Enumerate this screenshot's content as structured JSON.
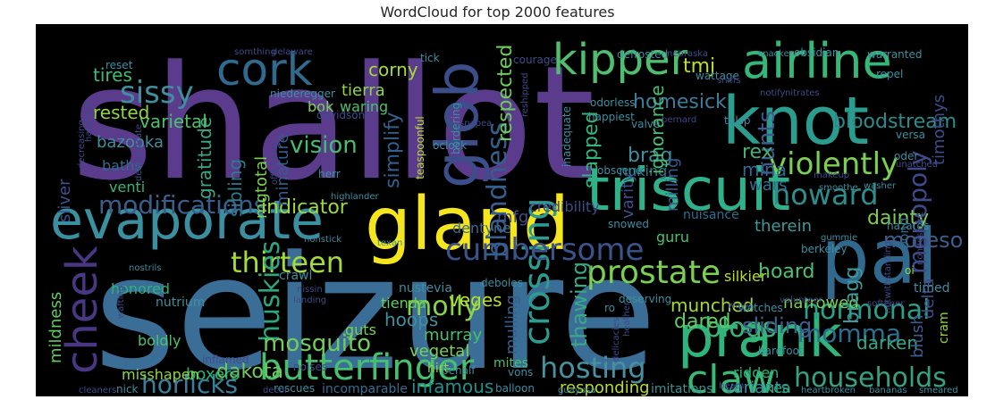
{
  "chart_data": {
    "type": "wordcloud",
    "title": "WordCloud for top 2000 features",
    "background": "#000000",
    "colormap": "viridis",
    "words": [
      {
        "text": "shallot",
        "color": "#5b3b8c"
      },
      {
        "text": "seizure",
        "color": "#3b6e96"
      },
      {
        "text": "gland",
        "color": "#f4e51c"
      },
      {
        "text": "triscuit",
        "color": "#2fb28b"
      },
      {
        "text": "evaporate",
        "color": "#3a8fa0"
      },
      {
        "text": "cork",
        "color": "#306a8e"
      },
      {
        "text": "glob",
        "color": "#3b4e8a"
      },
      {
        "text": "kipper",
        "color": "#4fbf6f"
      },
      {
        "text": "airline",
        "color": "#35b779"
      },
      {
        "text": "knot",
        "color": "#2a9d8f"
      },
      {
        "text": "pal",
        "color": "#31688e"
      },
      {
        "text": "prank",
        "color": "#2fb47c"
      },
      {
        "text": "cheek",
        "color": "#4a3784"
      },
      {
        "text": "butterfinger",
        "color": "#46c06f"
      },
      {
        "text": "claw",
        "color": "#38b977"
      },
      {
        "text": "crossing",
        "color": "#2b9c8f"
      },
      {
        "text": "prostate",
        "color": "#7ad151"
      },
      {
        "text": "cumbersome",
        "color": "#3b528b"
      },
      {
        "text": "modifications",
        "color": "#3a5d8c"
      },
      {
        "text": "thirteen",
        "color": "#a5db36"
      },
      {
        "text": "hosting",
        "color": "#4690a0"
      },
      {
        "text": "blandness",
        "color": "#35608d"
      },
      {
        "text": "violently",
        "color": "#7ad151"
      },
      {
        "text": "howard",
        "color": "#2c8d8c"
      },
      {
        "text": "hormonal",
        "color": "#2a9f8a"
      },
      {
        "text": "households",
        "color": "#34a17f"
      },
      {
        "text": "horlicks",
        "color": "#3b7f9c"
      },
      {
        "text": "molly",
        "color": "#86d549"
      },
      {
        "text": "huskies",
        "color": "#2da67f"
      },
      {
        "text": "sissy",
        "color": "#3e8fa0"
      },
      {
        "text": "monopoly",
        "color": "#3f4a8a"
      },
      {
        "text": "momma",
        "color": "#2e6e8e"
      },
      {
        "text": "nunts",
        "color": "#3e5a8f"
      },
      {
        "text": "blogs",
        "color": "#3ab57a"
      },
      {
        "text": "mosquito",
        "color": "#70cf57"
      },
      {
        "text": "dakota",
        "color": "#6ccd5a"
      },
      {
        "text": "boxers",
        "color": "#2db27d"
      },
      {
        "text": "infamous",
        "color": "#21918c"
      },
      {
        "text": "variants",
        "color": "#3a8ca0"
      },
      {
        "text": "responding",
        "color": "#b8de29"
      },
      {
        "text": "imitations",
        "color": "#3f8f8f"
      },
      {
        "text": "incomparable",
        "color": "#346e8e"
      },
      {
        "text": "sliding",
        "color": "#3f5c8f"
      },
      {
        "text": "dared",
        "color": "#63cb5f"
      },
      {
        "text": "munched",
        "color": "#a0da39"
      },
      {
        "text": "hoard",
        "color": "#4cc26c"
      },
      {
        "text": "darken",
        "color": "#33a785"
      },
      {
        "text": "bloodstream",
        "color": "#2b8c8c"
      },
      {
        "text": "timothys",
        "color": "#3e4d8a"
      },
      {
        "text": "indicator",
        "color": "#9bd93c"
      },
      {
        "text": "vision",
        "color": "#42be71"
      },
      {
        "text": "gratitude",
        "color": "#3aa787"
      },
      {
        "text": "sibling",
        "color": "#2e7a8e"
      },
      {
        "text": "mgtotal",
        "color": "#7ad151"
      },
      {
        "text": "minature",
        "color": "#365c8d"
      },
      {
        "text": "respected",
        "color": "#6ccd5a"
      },
      {
        "text": "slapped",
        "color": "#30b57b"
      },
      {
        "text": "simplify",
        "color": "#33608d"
      },
      {
        "text": "brag",
        "color": "#3e8fa0"
      },
      {
        "text": "nuking",
        "color": "#2a788e"
      },
      {
        "text": "homesick",
        "color": "#3c7d9c"
      },
      {
        "text": "rex",
        "color": "#41b176"
      },
      {
        "text": "mina",
        "color": "#306a8e"
      },
      {
        "text": "wars",
        "color": "#2d708e"
      },
      {
        "text": "therein",
        "color": "#3b9a9a"
      },
      {
        "text": "dainty",
        "color": "#7ad151"
      },
      {
        "text": "moreso",
        "color": "#3b5f8d"
      },
      {
        "text": "ignorance",
        "color": "#46c06f"
      },
      {
        "text": "milling",
        "color": "#37598c"
      },
      {
        "text": "varity",
        "color": "#3f4e8a"
      },
      {
        "text": "tmj",
        "color": "#bddf26"
      },
      {
        "text": "corny",
        "color": "#a5db36"
      },
      {
        "text": "tierra",
        "color": "#8ed645"
      },
      {
        "text": "bok",
        "color": "#7ad151"
      },
      {
        "text": "waring",
        "color": "#4ac16d"
      },
      {
        "text": "varietal",
        "color": "#4ac16d"
      },
      {
        "text": "tires",
        "color": "#3dbc74"
      },
      {
        "text": "rested",
        "color": "#8ed645"
      },
      {
        "text": "bazooka",
        "color": "#3f8f9f"
      },
      {
        "text": "baths",
        "color": "#2e6b8e"
      },
      {
        "text": "venti",
        "color": "#35b779"
      },
      {
        "text": "sliver",
        "color": "#3b528b"
      },
      {
        "text": "honored",
        "color": "#2eb37c"
      },
      {
        "text": "mildness",
        "color": "#63cb5f"
      },
      {
        "text": "veges",
        "color": "#b8de29"
      },
      {
        "text": "murray",
        "color": "#46c06f"
      },
      {
        "text": "hoops",
        "color": "#3f8f9f"
      },
      {
        "text": "vegetal",
        "color": "#7ad151"
      },
      {
        "text": "nustevia",
        "color": "#3d8e9f"
      },
      {
        "text": "tienda",
        "color": "#63cb5f"
      },
      {
        "text": "guts",
        "color": "#7ad151"
      },
      {
        "text": "nutrium",
        "color": "#3f8f9f"
      },
      {
        "text": "boldly",
        "color": "#4ac16d"
      },
      {
        "text": "misshapen",
        "color": "#8ed645"
      },
      {
        "text": "ridden",
        "color": "#2db27d"
      },
      {
        "text": "ikea",
        "color": "#2db27d"
      },
      {
        "text": "credibility",
        "color": "#3f4a8a"
      },
      {
        "text": "dentyne",
        "color": "#3d6a8e"
      },
      {
        "text": "mfg",
        "color": "#3f4e8a"
      },
      {
        "text": "nuisance",
        "color": "#2a6f8e"
      },
      {
        "text": "guru",
        "color": "#4ac16d"
      },
      {
        "text": "crawl",
        "color": "#3b8fa0"
      },
      {
        "text": "hirt",
        "color": "#8ed645"
      },
      {
        "text": "mites",
        "color": "#46c06f"
      },
      {
        "text": "thawing",
        "color": "#3aa787"
      },
      {
        "text": "mulling",
        "color": "#35608d"
      },
      {
        "text": "silkier",
        "color": "#b8de29"
      },
      {
        "text": "narrowed",
        "color": "#7ad151"
      },
      {
        "text": "bragg",
        "color": "#3b9a9a"
      },
      {
        "text": "blush",
        "color": "#3e5a8f"
      },
      {
        "text": "delta",
        "color": "#3f4e8a"
      },
      {
        "text": "timed",
        "color": "#3b8fa0"
      },
      {
        "text": "bond",
        "color": "#2e6b8e"
      },
      {
        "text": "cram",
        "color": "#8ed645"
      },
      {
        "text": "oi",
        "color": "#8ed645"
      },
      {
        "text": "reset",
        "color": "#3b8fa0"
      },
      {
        "text": "tick",
        "color": "#3b8fa0"
      },
      {
        "text": "somthing",
        "color": "#3f4a8a"
      },
      {
        "text": "delaware",
        "color": "#3f4a8a"
      },
      {
        "text": "niederegger",
        "color": "#3b8fa0"
      },
      {
        "text": "davidsons",
        "color": "#3f4a8a"
      },
      {
        "text": "hallelujah",
        "color": "#3f4a8a"
      },
      {
        "text": "decreasing",
        "color": "#3f4a8a"
      },
      {
        "text": "demonstrate",
        "color": "#3f4a8a"
      },
      {
        "text": "offending",
        "color": "#3f4a8a"
      },
      {
        "text": "teaspoonful",
        "color": "#b8de29"
      },
      {
        "text": "oclock",
        "color": "#3b8fa0"
      },
      {
        "text": "bordering",
        "color": "#3b8fa0"
      },
      {
        "text": "snapea",
        "color": "#3f4a8a"
      },
      {
        "text": "reshipped",
        "color": "#3f4a8a"
      },
      {
        "text": "inadequate",
        "color": "#3b8fa0"
      },
      {
        "text": "odorless",
        "color": "#3b8fa0"
      },
      {
        "text": "happiest",
        "color": "#3b8fa0"
      },
      {
        "text": "bernard",
        "color": "#3f4a8a"
      },
      {
        "text": "valve",
        "color": "#3b8fa0"
      },
      {
        "text": "obscene",
        "color": "#3b8fa0"
      },
      {
        "text": "herr",
        "color": "#3b8fa0"
      },
      {
        "text": "highlander",
        "color": "#3b8fa0"
      },
      {
        "text": "nonstick",
        "color": "#3b8fa0"
      },
      {
        "text": "texan",
        "color": "#3b8fa0"
      },
      {
        "text": "snowed",
        "color": "#3b8fa0"
      },
      {
        "text": "nostrils",
        "color": "#3b8fa0"
      },
      {
        "text": "nissin",
        "color": "#3f4a8a"
      },
      {
        "text": "landing",
        "color": "#3f4a8a"
      },
      {
        "text": "wafting",
        "color": "#3f4a8a"
      },
      {
        "text": "deboles",
        "color": "#3b8fa0"
      },
      {
        "text": "ro",
        "color": "#3b8fa0"
      },
      {
        "text": "deserving",
        "color": "#3b8fa0"
      },
      {
        "text": "volunteer",
        "color": "#3f4a8a"
      },
      {
        "text": "heather",
        "color": "#3f4a8a"
      },
      {
        "text": "delicacies",
        "color": "#3f4a8a"
      },
      {
        "text": "behalf",
        "color": "#3b8fa0"
      },
      {
        "text": "vons",
        "color": "#3b8fa0"
      },
      {
        "text": "wayyy",
        "color": "#3f4a8a"
      },
      {
        "text": "watches",
        "color": "#3b8fa0"
      },
      {
        "text": "barefoot",
        "color": "#3b8fa0"
      },
      {
        "text": "softener",
        "color": "#3f4a8a"
      },
      {
        "text": "notwithstanding",
        "color": "#3f4a8a"
      },
      {
        "text": "inflamed",
        "color": "#3f4a8a"
      },
      {
        "text": "noises",
        "color": "#3f4a8a"
      },
      {
        "text": "balloon",
        "color": "#3b8fa0"
      },
      {
        "text": "beam",
        "color": "#3f4a8a"
      },
      {
        "text": "rescues",
        "color": "#3b8fa0"
      },
      {
        "text": "decor",
        "color": "#3f4a8a"
      },
      {
        "text": "nick",
        "color": "#3b8fa0"
      },
      {
        "text": "cleaners",
        "color": "#3f4a8a"
      },
      {
        "text": "guayusa",
        "color": "#3b8fa0"
      },
      {
        "text": "heartbroken",
        "color": "#3b8fa0"
      },
      {
        "text": "bananas",
        "color": "#3b8fa0"
      },
      {
        "text": "smeared",
        "color": "#3b8fa0"
      },
      {
        "text": "defrosted",
        "color": "#3b8fa0"
      },
      {
        "text": "nebraska",
        "color": "#3f4a8a"
      },
      {
        "text": "wattage",
        "color": "#3b8fa0"
      },
      {
        "text": "snacker",
        "color": "#3b8fa0"
      },
      {
        "text": "obsidian",
        "color": "#3b8fa0"
      },
      {
        "text": "warranted",
        "color": "#3b8fa0"
      },
      {
        "text": "repel",
        "color": "#3b8fa0"
      },
      {
        "text": "notify",
        "color": "#3f4a8a"
      },
      {
        "text": "nitrates",
        "color": "#3f4a8a"
      },
      {
        "text": "courage",
        "color": "#3f4a8a"
      },
      {
        "text": "versa",
        "color": "#3b8fa0"
      },
      {
        "text": "oder",
        "color": "#3b8fa0"
      },
      {
        "text": "tblsp",
        "color": "#3b8fa0"
      },
      {
        "text": "unatched",
        "color": "#3f4a8a"
      },
      {
        "text": "washer",
        "color": "#3b8fa0"
      },
      {
        "text": "smoothe",
        "color": "#3b8fa0"
      },
      {
        "text": "makeup",
        "color": "#3f4a8a"
      },
      {
        "text": "gummie",
        "color": "#3b8fa0"
      },
      {
        "text": "berkeley",
        "color": "#3b8fa0"
      },
      {
        "text": "hazards",
        "color": "#3b8fa0"
      },
      {
        "text": "nondescript",
        "color": "#3f4a8a"
      },
      {
        "text": "sniffs",
        "color": "#3f4a8a"
      }
    ]
  }
}
